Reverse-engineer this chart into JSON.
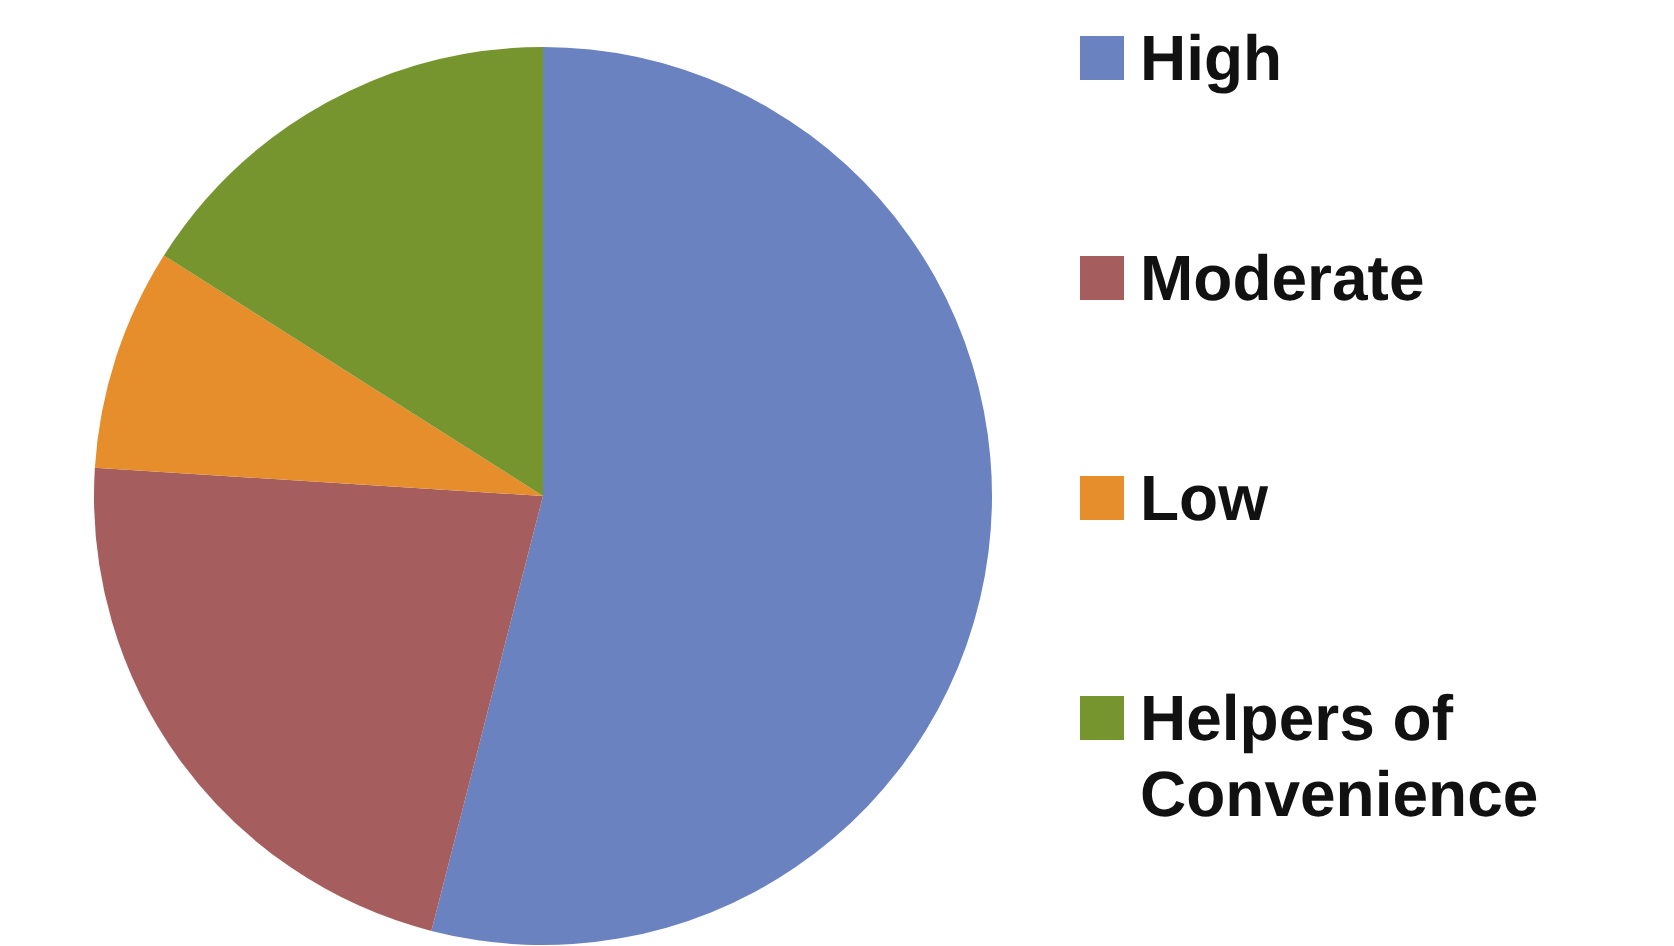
{
  "chart_data": {
    "type": "pie",
    "categories": [
      "High",
      "Moderate",
      "Low",
      "Helpers of Convenience"
    ],
    "values": [
      54,
      22,
      8,
      16
    ],
    "colors": [
      "#6a82bf",
      "#a65d5d",
      "#e58e2b",
      "#76952f"
    ],
    "legend": "right"
  }
}
